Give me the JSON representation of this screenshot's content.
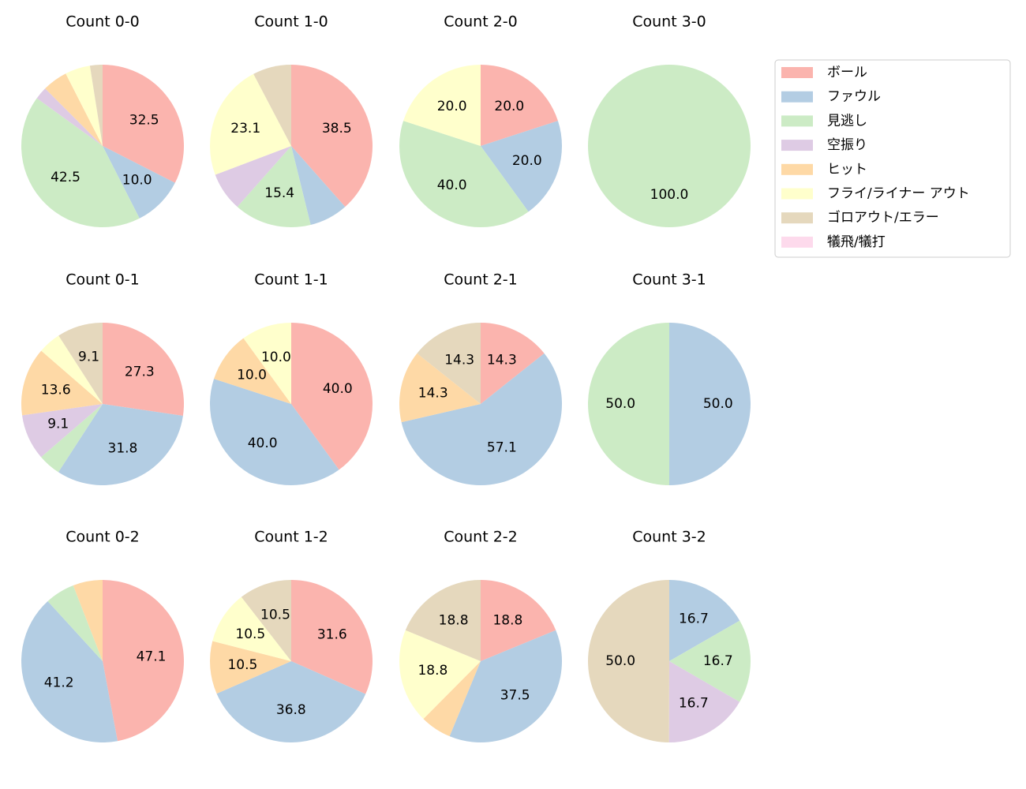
{
  "chart_data": [
    {
      "type": "pie",
      "title": "Count 0-0",
      "categories": [
        "ボール",
        "ファウル",
        "見逃し",
        "空振り",
        "ヒット",
        "フライ/ライナー アウト",
        "ゴロアウト/エラー",
        "犠飛/犠打"
      ],
      "colors": [
        "#fbb4ae",
        "#b3cde3",
        "#ccebc5",
        "#decbe4",
        "#fed9a6",
        "#ffffcc",
        "#e5d8bd",
        "#fddaec"
      ],
      "values": [
        32.5,
        10.0,
        42.5,
        2.5,
        5.0,
        5.0,
        2.5,
        0
      ],
      "value_labels": [
        "32.5",
        "10.0",
        "42.5",
        null,
        null,
        null,
        null,
        null
      ]
    },
    {
      "type": "pie",
      "title": "Count 1-0",
      "categories": [
        "ボール",
        "ファウル",
        "見逃し",
        "空振り",
        "ヒット",
        "フライ/ライナー アウト",
        "ゴロアウト/エラー",
        "犠飛/犠打"
      ],
      "colors": [
        "#fbb4ae",
        "#b3cde3",
        "#ccebc5",
        "#decbe4",
        "#fed9a6",
        "#ffffcc",
        "#e5d8bd",
        "#fddaec"
      ],
      "values": [
        38.5,
        7.7,
        15.4,
        7.7,
        0,
        23.1,
        7.7,
        0
      ],
      "value_labels": [
        "38.5",
        null,
        "15.4",
        null,
        null,
        "23.1",
        null,
        null
      ]
    },
    {
      "type": "pie",
      "title": "Count 2-0",
      "categories": [
        "ボール",
        "ファウル",
        "見逃し",
        "空振り",
        "ヒット",
        "フライ/ライナー アウト",
        "ゴロアウト/エラー",
        "犠飛/犠打"
      ],
      "colors": [
        "#fbb4ae",
        "#b3cde3",
        "#ccebc5",
        "#decbe4",
        "#fed9a6",
        "#ffffcc",
        "#e5d8bd",
        "#fddaec"
      ],
      "values": [
        20.0,
        20.0,
        40.0,
        0,
        0,
        20.0,
        0,
        0
      ],
      "value_labels": [
        "20.0",
        "20.0",
        "40.0",
        null,
        null,
        "20.0",
        null,
        null
      ]
    },
    {
      "type": "pie",
      "title": "Count 3-0",
      "categories": [
        "ボール",
        "ファウル",
        "見逃し",
        "空振り",
        "ヒット",
        "フライ/ライナー アウト",
        "ゴロアウト/エラー",
        "犠飛/犠打"
      ],
      "colors": [
        "#fbb4ae",
        "#b3cde3",
        "#ccebc5",
        "#decbe4",
        "#fed9a6",
        "#ffffcc",
        "#e5d8bd",
        "#fddaec"
      ],
      "values": [
        0,
        0,
        100.0,
        0,
        0,
        0,
        0,
        0
      ],
      "value_labels": [
        null,
        null,
        "100.0",
        null,
        null,
        null,
        null,
        null
      ]
    },
    {
      "type": "pie",
      "title": "Count 0-1",
      "categories": [
        "ボール",
        "ファウル",
        "見逃し",
        "空振り",
        "ヒット",
        "フライ/ライナー アウト",
        "ゴロアウト/エラー",
        "犠飛/犠打"
      ],
      "colors": [
        "#fbb4ae",
        "#b3cde3",
        "#ccebc5",
        "#decbe4",
        "#fed9a6",
        "#ffffcc",
        "#e5d8bd",
        "#fddaec"
      ],
      "values": [
        27.3,
        31.8,
        4.5,
        9.1,
        13.6,
        4.5,
        9.1,
        0
      ],
      "value_labels": [
        "27.3",
        "31.8",
        null,
        "9.1",
        "13.6",
        null,
        "9.1",
        null
      ]
    },
    {
      "type": "pie",
      "title": "Count 1-1",
      "categories": [
        "ボール",
        "ファウル",
        "見逃し",
        "空振り",
        "ヒット",
        "フライ/ライナー アウト",
        "ゴロアウト/エラー",
        "犠飛/犠打"
      ],
      "colors": [
        "#fbb4ae",
        "#b3cde3",
        "#ccebc5",
        "#decbe4",
        "#fed9a6",
        "#ffffcc",
        "#e5d8bd",
        "#fddaec"
      ],
      "values": [
        40.0,
        40.0,
        0,
        0,
        10.0,
        10.0,
        0,
        0
      ],
      "value_labels": [
        "40.0",
        "40.0",
        null,
        null,
        "10.0",
        "10.0",
        null,
        null
      ]
    },
    {
      "type": "pie",
      "title": "Count 2-1",
      "categories": [
        "ボール",
        "ファウル",
        "見逃し",
        "空振り",
        "ヒット",
        "フライ/ライナー アウト",
        "ゴロアウト/エラー",
        "犠飛/犠打"
      ],
      "colors": [
        "#fbb4ae",
        "#b3cde3",
        "#ccebc5",
        "#decbe4",
        "#fed9a6",
        "#ffffcc",
        "#e5d8bd",
        "#fddaec"
      ],
      "values": [
        14.3,
        57.1,
        0,
        0,
        14.3,
        0,
        14.3,
        0
      ],
      "value_labels": [
        "14.3",
        "57.1",
        null,
        null,
        "14.3",
        null,
        "14.3",
        null
      ]
    },
    {
      "type": "pie",
      "title": "Count 3-1",
      "categories": [
        "ボール",
        "ファウル",
        "見逃し",
        "空振り",
        "ヒット",
        "フライ/ライナー アウト",
        "ゴロアウト/エラー",
        "犠飛/犠打"
      ],
      "colors": [
        "#fbb4ae",
        "#b3cde3",
        "#ccebc5",
        "#decbe4",
        "#fed9a6",
        "#ffffcc",
        "#e5d8bd",
        "#fddaec"
      ],
      "values": [
        0,
        50.0,
        50.0,
        0,
        0,
        0,
        0,
        0
      ],
      "value_labels": [
        null,
        "50.0",
        "50.0",
        null,
        null,
        null,
        null,
        null
      ]
    },
    {
      "type": "pie",
      "title": "Count 0-2",
      "categories": [
        "ボール",
        "ファウル",
        "見逃し",
        "空振り",
        "ヒット",
        "フライ/ライナー アウト",
        "ゴロアウト/エラー",
        "犠飛/犠打"
      ],
      "colors": [
        "#fbb4ae",
        "#b3cde3",
        "#ccebc5",
        "#decbe4",
        "#fed9a6",
        "#ffffcc",
        "#e5d8bd",
        "#fddaec"
      ],
      "values": [
        47.1,
        41.2,
        5.9,
        0,
        5.9,
        0,
        0,
        0
      ],
      "value_labels": [
        "47.1",
        "41.2",
        null,
        null,
        null,
        null,
        null,
        null
      ]
    },
    {
      "type": "pie",
      "title": "Count 1-2",
      "categories": [
        "ボール",
        "ファウル",
        "見逃し",
        "空振り",
        "ヒット",
        "フライ/ライナー アウト",
        "ゴロアウト/エラー",
        "犠飛/犠打"
      ],
      "colors": [
        "#fbb4ae",
        "#b3cde3",
        "#ccebc5",
        "#decbe4",
        "#fed9a6",
        "#ffffcc",
        "#e5d8bd",
        "#fddaec"
      ],
      "values": [
        31.6,
        36.8,
        0,
        0,
        10.5,
        10.5,
        10.5,
        0
      ],
      "value_labels": [
        "31.6",
        "36.8",
        null,
        null,
        "10.5",
        "10.5",
        "10.5",
        null
      ]
    },
    {
      "type": "pie",
      "title": "Count 2-2",
      "categories": [
        "ボール",
        "ファウル",
        "見逃し",
        "空振り",
        "ヒット",
        "フライ/ライナー アウト",
        "ゴロアウト/エラー",
        "犠飛/犠打"
      ],
      "colors": [
        "#fbb4ae",
        "#b3cde3",
        "#ccebc5",
        "#decbe4",
        "#fed9a6",
        "#ffffcc",
        "#e5d8bd",
        "#fddaec"
      ],
      "values": [
        18.8,
        37.5,
        0,
        0,
        6.2,
        18.8,
        18.8,
        0
      ],
      "value_labels": [
        "18.8",
        "37.5",
        null,
        null,
        null,
        "18.8",
        "18.8",
        null
      ]
    },
    {
      "type": "pie",
      "title": "Count 3-2",
      "categories": [
        "ボール",
        "ファウル",
        "見逃し",
        "空振り",
        "ヒット",
        "フライ/ライナー アウト",
        "ゴロアウト/エラー",
        "犠飛/犠打"
      ],
      "colors": [
        "#fbb4ae",
        "#b3cde3",
        "#ccebc5",
        "#decbe4",
        "#fed9a6",
        "#ffffcc",
        "#e5d8bd",
        "#fddaec"
      ],
      "values": [
        0,
        16.7,
        16.7,
        16.7,
        0,
        0,
        50.0,
        0
      ],
      "value_labels": [
        null,
        "16.7",
        "16.7",
        "16.7",
        null,
        null,
        "50.0",
        null
      ]
    }
  ]
}
